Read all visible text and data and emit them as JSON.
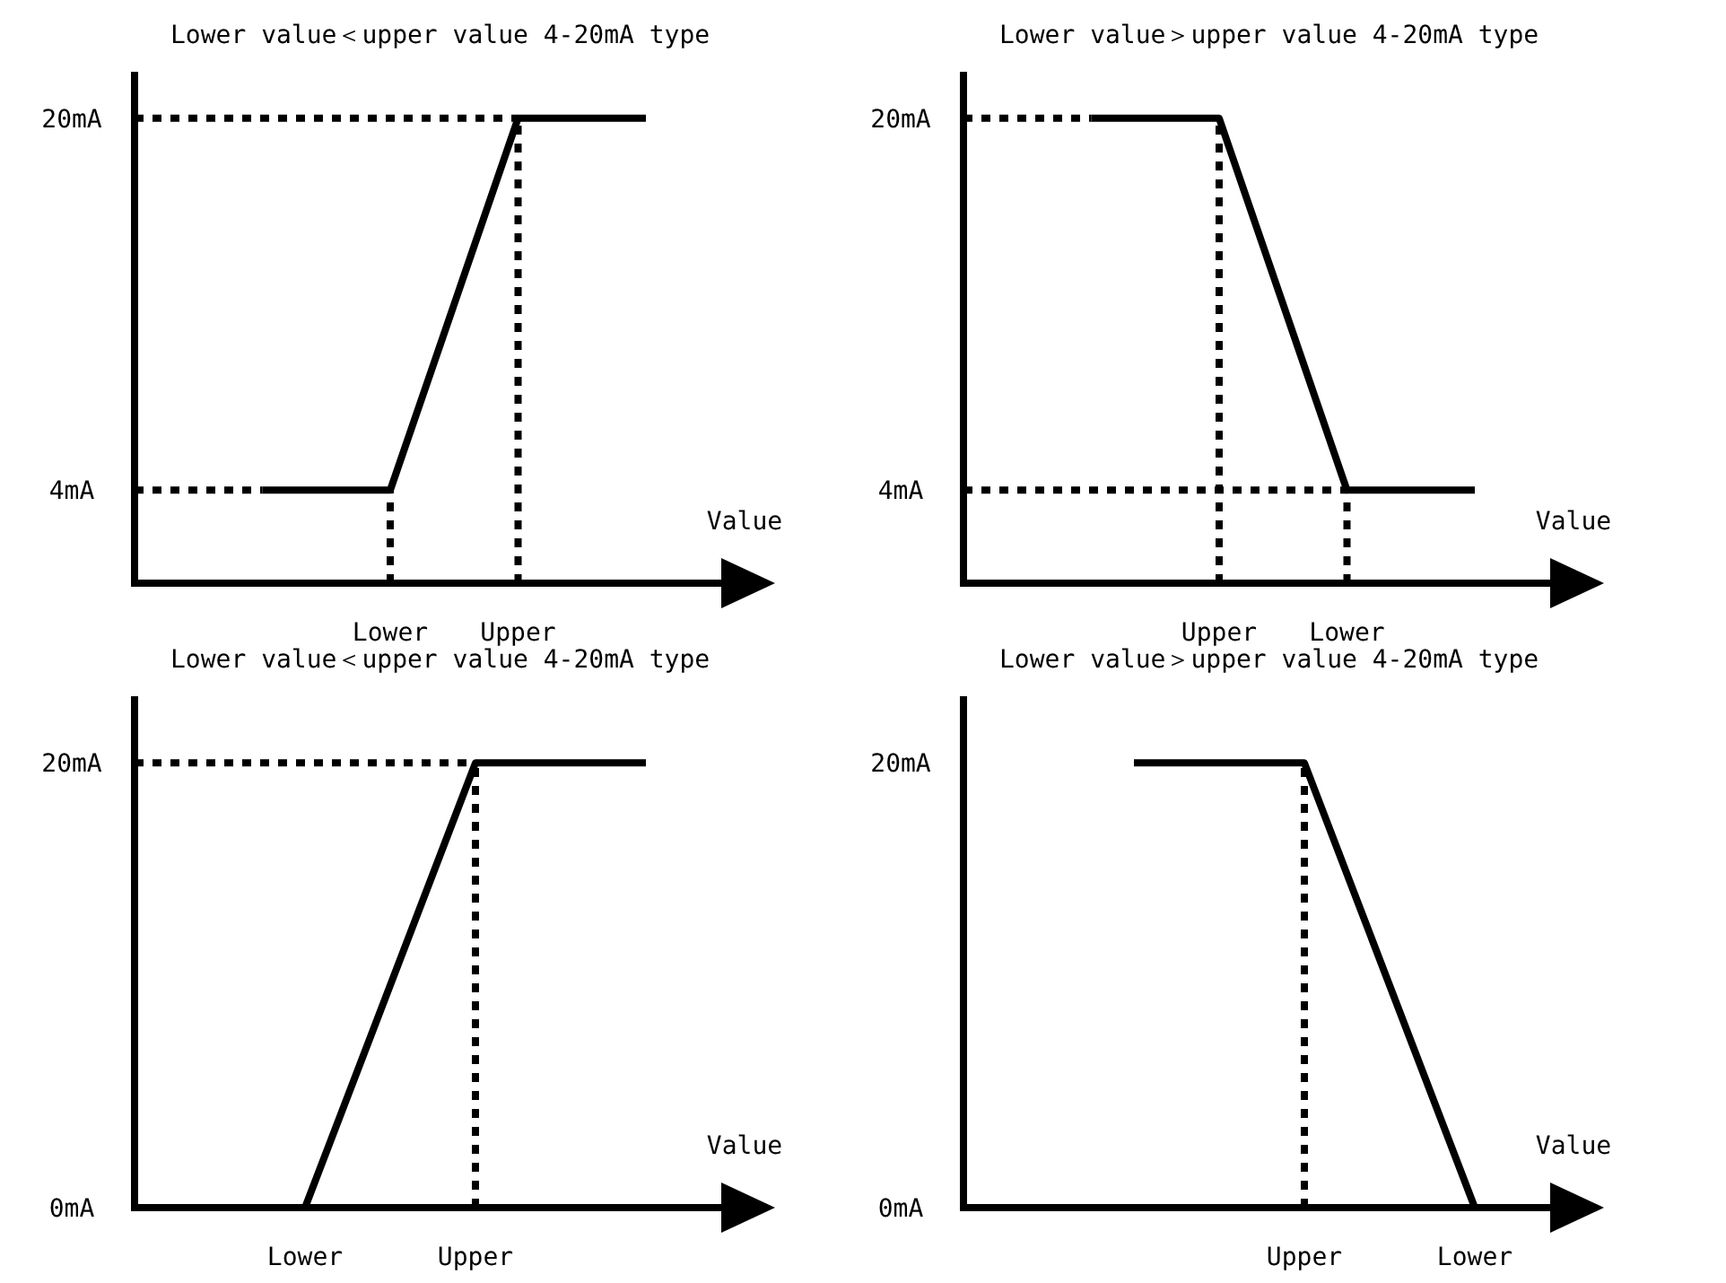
{
  "chart_data": [
    {
      "type": "line",
      "title": "Lower value＜upper value 4-20mA type",
      "xlabel": "Value",
      "categories": [
        null,
        null,
        "Lower",
        "Upper",
        null
      ],
      "ylim": [
        0,
        22
      ],
      "yticks": [
        {
          "value": 4,
          "label": "4mA"
        },
        {
          "value": 20,
          "label": "20mA"
        }
      ],
      "series": [
        {
          "color": "#000000",
          "line_style": "solid",
          "values": [
            null,
            4,
            4,
            20,
            20
          ]
        },
        {
          "color": "#000000",
          "line_style": "dotted",
          "values": [
            4,
            4,
            null,
            null,
            null
          ]
        },
        {
          "color": "#000000",
          "line_style": "dotted",
          "values": [
            20,
            20,
            20,
            20,
            null
          ]
        }
      ],
      "ref_lines": [
        {
          "axis": "x",
          "value": "Lower",
          "line_style": "dotted",
          "color": "#000000"
        },
        {
          "axis": "x",
          "value": "Upper",
          "line_style": "dotted",
          "color": "#000000"
        }
      ]
    },
    {
      "type": "line",
      "title": "Lower value＞upper value 4-20mA type",
      "xlabel": "Value",
      "categories": [
        null,
        null,
        "Upper",
        "Lower",
        null
      ],
      "ylim": [
        0,
        22
      ],
      "yticks": [
        {
          "value": 4,
          "label": "4mA"
        },
        {
          "value": 20,
          "label": "20mA"
        }
      ],
      "series": [
        {
          "color": "#000000",
          "line_style": "solid",
          "values": [
            null,
            20,
            20,
            4,
            4
          ]
        },
        {
          "color": "#000000",
          "line_style": "dotted",
          "values": [
            20,
            20,
            null,
            null,
            null
          ]
        },
        {
          "color": "#000000",
          "line_style": "dotted",
          "values": [
            4,
            4,
            4,
            4,
            null
          ]
        }
      ],
      "ref_lines": [
        {
          "axis": "x",
          "value": "Upper",
          "line_style": "dotted",
          "color": "#000000"
        },
        {
          "axis": "x",
          "value": "Lower",
          "line_style": "dotted",
          "color": "#000000"
        }
      ]
    },
    {
      "type": "line",
      "title": "Lower value＜upper value 4-20mA type",
      "xlabel": "Value",
      "categories": [
        null,
        "Lower",
        "Upper",
        null
      ],
      "ylim": [
        0,
        23
      ],
      "yticks": [
        {
          "value": 0,
          "label": "0mA"
        },
        {
          "value": 20,
          "label": "20mA"
        }
      ],
      "series": [
        {
          "color": "#000000",
          "line_style": "solid",
          "values": [
            null,
            0,
            20,
            20
          ]
        },
        {
          "color": "#000000",
          "line_style": "dotted",
          "values": [
            20,
            20,
            20,
            null
          ]
        }
      ],
      "ref_lines": [
        {
          "axis": "x",
          "value": "Upper",
          "line_style": "dotted",
          "color": "#000000"
        }
      ]
    },
    {
      "type": "line",
      "title": "Lower value＞upper value 4-20mA type",
      "xlabel": "Value",
      "categories": [
        null,
        null,
        "Upper",
        "Lower"
      ],
      "ylim": [
        0,
        23
      ],
      "yticks": [
        {
          "value": 0,
          "label": "0mA"
        },
        {
          "value": 20,
          "label": "20mA"
        }
      ],
      "series": [
        {
          "color": "#000000",
          "line_style": "solid",
          "values": [
            null,
            20,
            20,
            0
          ]
        }
      ],
      "ref_lines": [
        {
          "axis": "x",
          "value": "Upper",
          "line_style": "dotted",
          "color": "#000000"
        }
      ]
    }
  ]
}
